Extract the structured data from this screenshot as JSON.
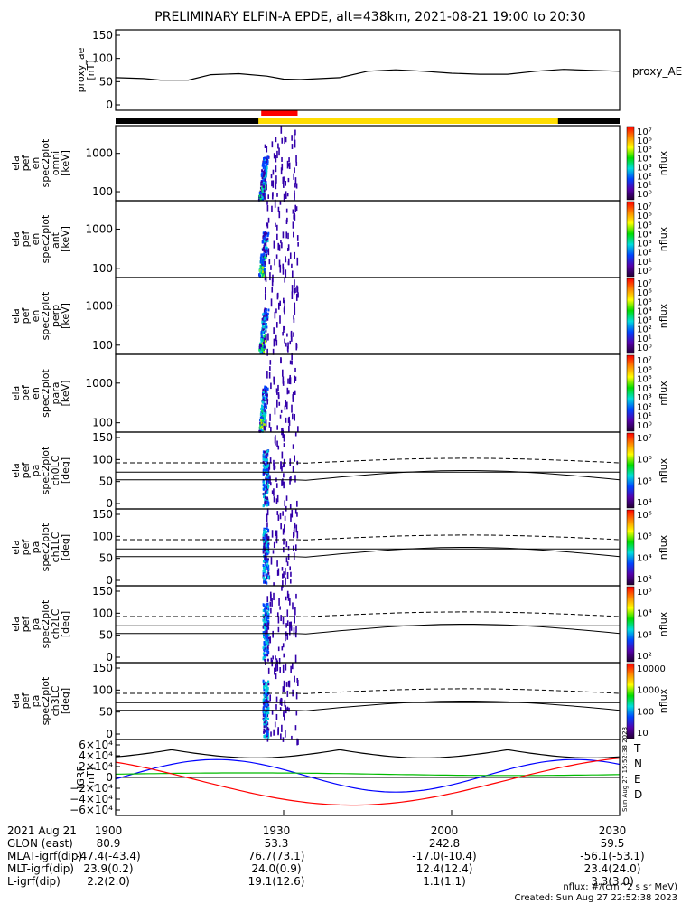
{
  "title": "PRELIMINARY ELFIN-A EPDE, alt=438km, 2021-08-21 19:00 to 20:30",
  "chart_data": {
    "type": "line",
    "time_range": [
      "19:00",
      "20:30"
    ],
    "panels": [
      {
        "id": "proxy_ae",
        "ylabel_lines": [
          "proxy_ae",
          "[nT]"
        ],
        "right_label": "proxy_AE",
        "yticks": [
          "150",
          "100",
          "50",
          "0"
        ],
        "ylim": [
          -10,
          155
        ],
        "series": [
          {
            "color": "#000000",
            "points": [
              [
                0,
                57
              ],
              [
                5,
                55
              ],
              [
                8,
                52
              ],
              [
                13,
                52
              ],
              [
                17,
                63
              ],
              [
                22,
                65
              ],
              [
                27,
                60
              ],
              [
                30,
                54
              ],
              [
                33,
                53
              ],
              [
                40,
                57
              ],
              [
                45,
                70
              ],
              [
                50,
                73
              ],
              [
                55,
                70
              ],
              [
                60,
                66
              ],
              [
                65,
                64
              ],
              [
                70,
                64
              ],
              [
                75,
                70
              ],
              [
                80,
                74
              ],
              [
                85,
                72
              ],
              [
                90,
                70
              ]
            ]
          }
        ]
      },
      {
        "id": "en_omni",
        "ylabel_lines": [
          "ela",
          "pef",
          "en",
          "spec2plot",
          "omni",
          "[keV]"
        ],
        "yticks": [
          "1000",
          "100"
        ],
        "colorbar": {
          "labels": [
            "10⁷",
            "10⁶",
            "10⁵",
            "10⁴",
            "10³",
            "10²",
            "10¹",
            "10⁰"
          ],
          "title": "nflux"
        }
      },
      {
        "id": "en_anti",
        "ylabel_lines": [
          "ela",
          "pef",
          "en",
          "spec2plot",
          "anti",
          "[keV]"
        ],
        "yticks": [
          "1000",
          "100"
        ],
        "colorbar": {
          "labels": [
            "10⁷",
            "10⁶",
            "10⁵",
            "10⁴",
            "10³",
            "10²",
            "10¹",
            "10⁰"
          ],
          "title": "nflux"
        }
      },
      {
        "id": "en_perp",
        "ylabel_lines": [
          "ela",
          "pef",
          "en",
          "spec2plot",
          "perp",
          "[keV]"
        ],
        "yticks": [
          "1000",
          "100"
        ],
        "colorbar": {
          "labels": [
            "10⁷",
            "10⁶",
            "10⁵",
            "10⁴",
            "10³",
            "10²",
            "10¹",
            "10⁰"
          ],
          "title": "nflux"
        }
      },
      {
        "id": "en_para",
        "ylabel_lines": [
          "ela",
          "pef",
          "en",
          "spec2plot",
          "para",
          "[keV]"
        ],
        "yticks": [
          "1000",
          "100"
        ],
        "colorbar": {
          "labels": [
            "10⁷",
            "10⁶",
            "10⁵",
            "10⁴",
            "10³",
            "10²",
            "10¹",
            "10⁰"
          ],
          "title": "nflux"
        }
      },
      {
        "id": "pa_ch0",
        "ylabel_lines": [
          "ela",
          "pef",
          "pa",
          "spec2plot",
          "ch0LC",
          "[deg]"
        ],
        "yticks": [
          "150",
          "100",
          "50",
          "0"
        ],
        "colorbar": {
          "labels": [
            "10⁷",
            "10⁶",
            "10⁵",
            "10⁴"
          ],
          "title": "nflux"
        }
      },
      {
        "id": "pa_ch1",
        "ylabel_lines": [
          "ela",
          "pef",
          "pa",
          "spec2plot",
          "ch1LC",
          "[deg]"
        ],
        "yticks": [
          "150",
          "100",
          "50",
          "0"
        ],
        "colorbar": {
          "labels": [
            "10⁶",
            "10⁵",
            "10⁴",
            "10³"
          ],
          "title": "nflux"
        }
      },
      {
        "id": "pa_ch2",
        "ylabel_lines": [
          "ela",
          "pef",
          "pa",
          "spec2plot",
          "ch2LC",
          "[deg]"
        ],
        "yticks": [
          "150",
          "100",
          "50",
          "0"
        ],
        "colorbar": {
          "labels": [
            "10⁵",
            "10⁴",
            "10³",
            "10²"
          ],
          "title": "nflux"
        }
      },
      {
        "id": "pa_ch3",
        "ylabel_lines": [
          "ela",
          "pef",
          "pa",
          "spec2plot",
          "ch3LC",
          "[deg]"
        ],
        "yticks": [
          "150",
          "100",
          "50",
          "0"
        ],
        "colorbar": {
          "labels": [
            "10000",
            "1000",
            "100",
            "10"
          ],
          "title": "nflux"
        }
      },
      {
        "id": "igrf",
        "ylabel_lines": [
          "IGRF",
          "[nT]"
        ],
        "yticks": [
          "6×10⁴",
          "4×10⁴",
          "2×10⁴",
          "0",
          "−2×10⁴",
          "−4×10⁴",
          "−6×10⁴"
        ],
        "ylim": [
          -60000,
          60000
        ],
        "legend": [
          {
            "label": "T",
            "color": "#000000"
          },
          {
            "label": "N",
            "color": "#0000ff"
          },
          {
            "label": "E",
            "color": "#00bb00"
          },
          {
            "label": "D",
            "color": "#ff0000"
          }
        ]
      }
    ]
  },
  "footer": {
    "rows": [
      {
        "label": "2021 Aug 21",
        "values": [
          "1900",
          "1930",
          "2000",
          "2030"
        ]
      },
      {
        "label": "GLON (east)",
        "values": [
          "80.9",
          "53.3",
          "242.8",
          "59.5"
        ]
      },
      {
        "label": "MLAT-igrf(dip)",
        "values": [
          "-47.4(-43.4)",
          "76.7(73.1)",
          "-17.0(-10.4)",
          "-56.1(-53.1)"
        ]
      },
      {
        "label": "MLT-igrf(dip)",
        "values": [
          "23.9(0.2)",
          "24.0(0.9)",
          "12.4(12.4)",
          "23.4(24.0)"
        ]
      },
      {
        "label": "L-igrf(dip)",
        "values": [
          "2.2(2.0)",
          "19.1(12.6)",
          "1.1(1.1)",
          "3.3(3.0)"
        ]
      }
    ],
    "units_note": "nflux: #/(cm^2 s sr MeV)",
    "created_note": "Created: Sun Aug 27 22:52:38 2023",
    "stamp": "Sun Aug 27 15:52:38 2023"
  }
}
